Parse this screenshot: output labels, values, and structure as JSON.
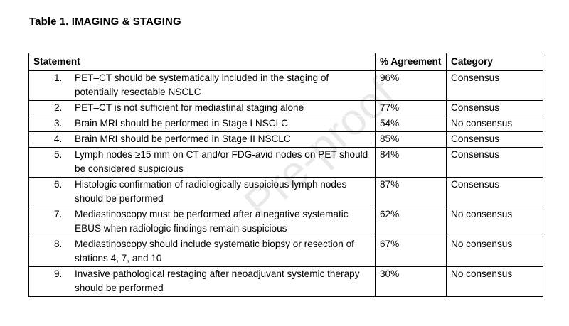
{
  "title": "Table 1. IMAGING & STAGING",
  "headers": {
    "statement": "Statement",
    "agreement": "% Agreement",
    "category": "Category"
  },
  "rows": [
    {
      "num": "1.",
      "statement": "PET–CT should be systematically included in the staging of potentially resectable NSCLC",
      "agreement": "96%",
      "category": "Consensus"
    },
    {
      "num": "2.",
      "statement": "PET–CT is not sufficient for mediastinal staging alone",
      "agreement": "77%",
      "category": "Consensus"
    },
    {
      "num": "3.",
      "statement": "Brain MRI should be performed in Stage I NSCLC",
      "agreement": "54%",
      "category": "No consensus"
    },
    {
      "num": "4.",
      "statement": "Brain MRI should be performed in Stage II NSCLC",
      "agreement": "85%",
      "category": "Consensus"
    },
    {
      "num": "5.",
      "statement": "Lymph nodes ≥15 mm on CT and/or FDG-avid nodes on PET should be considered suspicious",
      "agreement": "84%",
      "category": "Consensus"
    },
    {
      "num": "6.",
      "statement": "Histologic confirmation of radiologically suspicious lymph nodes should be performed",
      "agreement": "87%",
      "category": "Consensus"
    },
    {
      "num": "7.",
      "statement": "Mediastinoscopy must be performed after a negative systematic EBUS when radiologic findings remain suspicious",
      "agreement": "62%",
      "category": "No consensus"
    },
    {
      "num": "8.",
      "statement": "Mediastinoscopy should include systematic biopsy or resection of stations 4, 7, and 10",
      "agreement": "67%",
      "category": "No consensus"
    },
    {
      "num": "9.",
      "statement": "Invasive pathological restaging after neoadjuvant systemic therapy should be performed",
      "agreement": "30%",
      "category": "No consensus"
    }
  ],
  "watermark": "Pre-proof"
}
